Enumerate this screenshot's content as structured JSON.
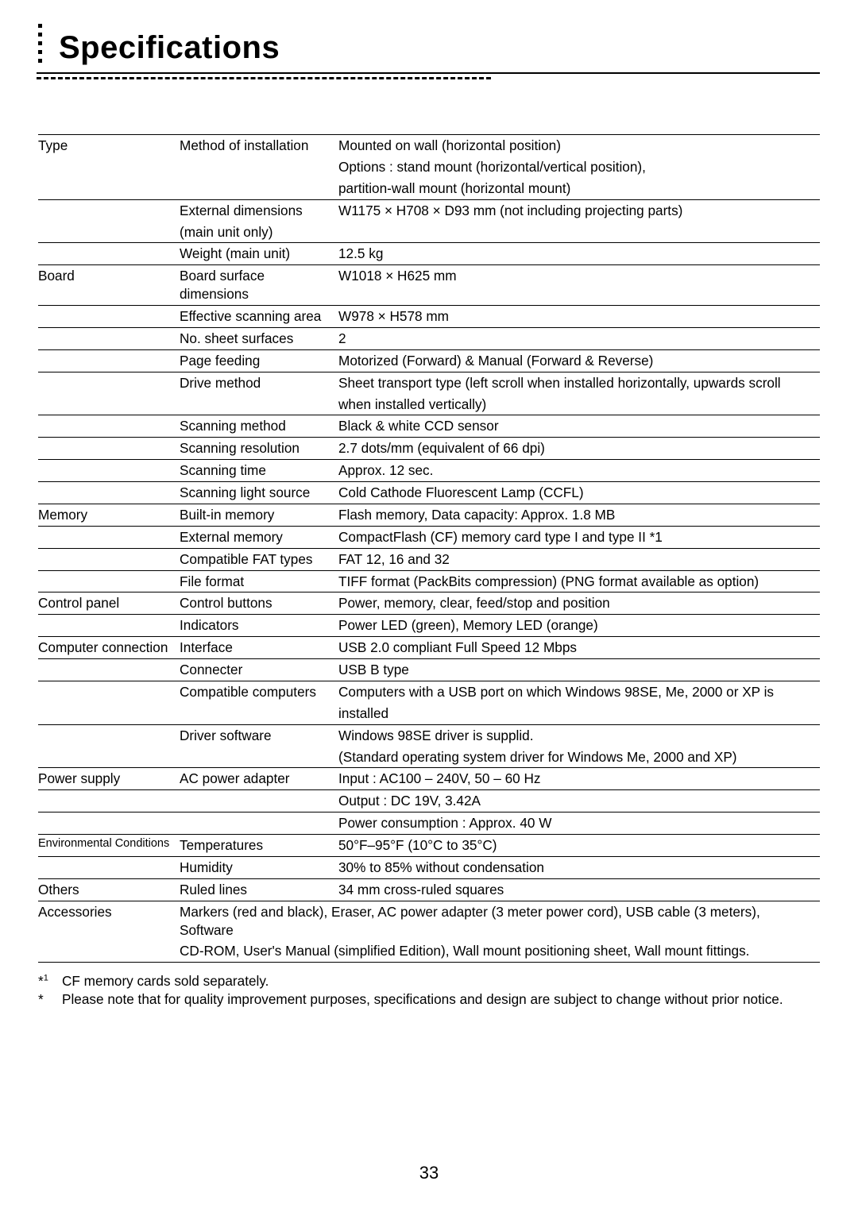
{
  "page": {
    "title": "Specifications",
    "number": "33"
  },
  "rows": [
    {
      "cat": "Type",
      "attr": "Method of installation",
      "val": "Mounted on wall (horizontal position)",
      "top": true
    },
    {
      "cat": "",
      "attr": "",
      "val": "Options : stand mount (horizontal/vertical position),"
    },
    {
      "cat": "",
      "attr": "",
      "val": "partition-wall mount (horizontal mount)",
      "indent": true
    },
    {
      "cat": "",
      "attr": "External dimensions",
      "val": "W1175 × H708 × D93 mm (not including projecting parts)",
      "top": true
    },
    {
      "cat": "",
      "attr": "(main unit only)",
      "val": ""
    },
    {
      "cat": "",
      "attr": "Weight (main unit)",
      "val": "12.5 kg",
      "top": true
    },
    {
      "cat": "Board",
      "attr": "Board surface dimensions",
      "val": "W1018 × H625 mm",
      "top": true
    },
    {
      "cat": "",
      "attr": "Effective scanning area",
      "val": "W978 × H578 mm",
      "top": true
    },
    {
      "cat": "",
      "attr": "No. sheet surfaces",
      "val": "2",
      "top": true
    },
    {
      "cat": "",
      "attr": "Page feeding",
      "val": "Motorized (Forward) & Manual (Forward & Reverse)",
      "top": true
    },
    {
      "cat": "",
      "attr": "Drive method",
      "val": "Sheet transport type (left scroll when installed horizontally, upwards scroll",
      "top": true
    },
    {
      "cat": "",
      "attr": "",
      "val": "when installed vertically)"
    },
    {
      "cat": "",
      "attr": "Scanning method",
      "val": "Black & white CCD sensor",
      "top": true
    },
    {
      "cat": "",
      "attr": "Scanning resolution",
      "val": "2.7 dots/mm (equivalent of 66 dpi)",
      "top": true
    },
    {
      "cat": "",
      "attr": "Scanning time",
      "val": "Approx. 12 sec.",
      "top": true
    },
    {
      "cat": "",
      "attr": "Scanning light source",
      "val": "Cold Cathode Fluorescent Lamp (CCFL)",
      "top": true
    },
    {
      "cat": "Memory",
      "attr": "Built-in memory",
      "val": "Flash memory, Data capacity: Approx. 1.8 MB",
      "top": true
    },
    {
      "cat": "",
      "attr": "External memory",
      "val": "CompactFlash (CF) memory card type I and type II *1",
      "top": true
    },
    {
      "cat": "",
      "attr": "Compatible FAT types",
      "val": "FAT 12, 16 and 32",
      "top": true
    },
    {
      "cat": "",
      "attr": "File format",
      "val": "TIFF format (PackBits compression) (PNG format available as option)",
      "top": true
    },
    {
      "cat": "Control panel",
      "attr": "Control buttons",
      "val": "Power, memory, clear, feed/stop and position",
      "top": true
    },
    {
      "cat": "",
      "attr": "Indicators",
      "val": "Power LED (green), Memory LED (orange)",
      "top": true
    },
    {
      "cat": "Computer connection",
      "attr": "Interface",
      "val": "USB 2.0 compliant Full Speed 12 Mbps",
      "top": true
    },
    {
      "cat": "",
      "attr": "Connecter",
      "val": "USB B type",
      "top": true
    },
    {
      "cat": "",
      "attr": "Compatible computers",
      "val": "Computers with a USB port on which Windows 98SE, Me, 2000 or XP is",
      "top": true
    },
    {
      "cat": "",
      "attr": "",
      "val": "installed"
    },
    {
      "cat": "",
      "attr": "Driver software",
      "val": "Windows 98SE driver is supplid.",
      "top": true
    },
    {
      "cat": "",
      "attr": "",
      "val": "(Standard operating system driver for Windows Me, 2000 and XP)"
    },
    {
      "cat": "Power supply",
      "attr": "AC power adapter",
      "val": "Input : AC100 – 240V, 50 – 60 Hz",
      "top": true
    },
    {
      "cat": "",
      "attr": "",
      "val": "Output : DC 19V, 3.42A",
      "top": true
    },
    {
      "cat": "",
      "attr": "",
      "val": "Power consumption : Approx. 40 W",
      "top": true
    },
    {
      "cat": "Environmental Conditions",
      "catClass": "env",
      "attr": "Temperatures",
      "val": "50°F–95°F (10°C to 35°C)",
      "top": true
    },
    {
      "cat": "",
      "attr": "Humidity",
      "val": "30% to 85% without condensation",
      "top": true
    },
    {
      "cat": "Others",
      "attr": "Ruled lines",
      "val": "34 mm cross-ruled squares",
      "top": true
    },
    {
      "cat": "Accessories",
      "colspan": true,
      "val": "Markers (red and black), Eraser, AC power adapter (3 meter power cord), USB cable (3 meters), Software",
      "top": true
    },
    {
      "cat": "",
      "colspan": true,
      "val": "CD-ROM, User's Manual (simplified Edition), Wall mount positioning sheet, Wall mount fittings.",
      "bottom": true
    }
  ],
  "footnotes": {
    "fn1_mark": "*",
    "fn1_sup": "1",
    "fn1_text": "CF memory cards sold separately.",
    "fn2_mark": "*",
    "fn2_text": "Please note that for quality improvement purposes, specifications and design are subject to change without prior notice."
  }
}
